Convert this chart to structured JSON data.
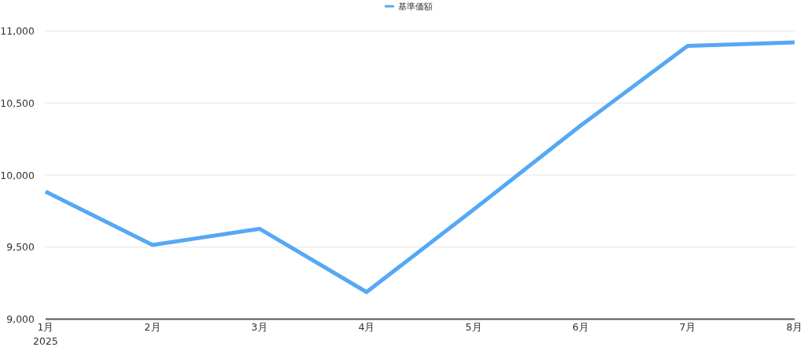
{
  "chart_data": {
    "type": "line",
    "categories": [
      "1月",
      "2月",
      "3月",
      "4月",
      "5月",
      "6月",
      "7月",
      "8月"
    ],
    "series": [
      {
        "name": "基準価額",
        "color": "#55a8f5",
        "values": [
          9885,
          9515,
          9627,
          9188,
          9760,
          10343,
          10896,
          10921
        ]
      }
    ],
    "ylim": [
      9000,
      11000
    ],
    "yticks": [
      {
        "value": 9000,
        "label": "9,000"
      },
      {
        "value": 9500,
        "label": "9,500"
      },
      {
        "value": 10000,
        "label": "10,000"
      },
      {
        "value": 10500,
        "label": "10,500"
      },
      {
        "value": 11000,
        "label": "11,000"
      }
    ],
    "grid": "y",
    "legend": "top",
    "marker": "none",
    "line_style": "solid",
    "annotations": [
      "2025"
    ]
  }
}
